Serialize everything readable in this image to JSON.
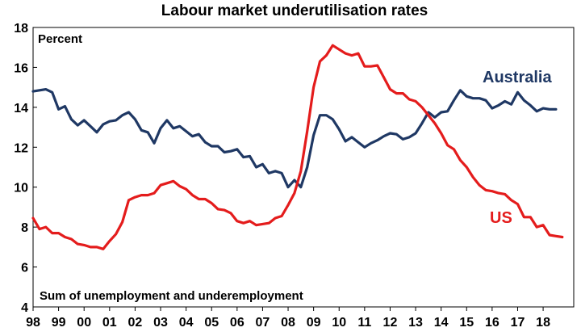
{
  "chart_data": {
    "type": "line",
    "title": "Labour market underutilisation rates",
    "ylabel": "Percent",
    "annotation": "Sum of unemployment and underemployment",
    "ylim": [
      4,
      18
    ],
    "yticks": [
      4,
      6,
      8,
      10,
      12,
      14,
      16,
      18
    ],
    "xlim": [
      1998.0,
      2019.2
    ],
    "xtick_positions": [
      1998,
      1999,
      2000,
      2001,
      2002,
      2003,
      2004,
      2005,
      2006,
      2007,
      2008,
      2009,
      2010,
      2011,
      2012,
      2013,
      2014,
      2015,
      2016,
      2017,
      2018
    ],
    "xtick_labels": [
      "98",
      "99",
      "00",
      "01",
      "02",
      "03",
      "04",
      "05",
      "06",
      "07",
      "08",
      "09",
      "10",
      "11",
      "12",
      "13",
      "14",
      "15",
      "16",
      "17",
      "18"
    ],
    "grid": false,
    "series": [
      {
        "name": "Australia",
        "color": "#1f3864",
        "x": [
          1998.0,
          1998.25,
          1998.5,
          1998.75,
          1999.0,
          1999.25,
          1999.5,
          1999.75,
          2000.0,
          2000.25,
          2000.5,
          2000.75,
          2001.0,
          2001.25,
          2001.5,
          2001.75,
          2002.0,
          2002.25,
          2002.5,
          2002.75,
          2003.0,
          2003.25,
          2003.5,
          2003.75,
          2004.0,
          2004.25,
          2004.5,
          2004.75,
          2005.0,
          2005.25,
          2005.5,
          2005.75,
          2006.0,
          2006.25,
          2006.5,
          2006.75,
          2007.0,
          2007.25,
          2007.5,
          2007.75,
          2008.0,
          2008.25,
          2008.5,
          2008.75,
          2009.0,
          2009.25,
          2009.5,
          2009.75,
          2010.0,
          2010.25,
          2010.5,
          2010.75,
          2011.0,
          2011.25,
          2011.5,
          2011.75,
          2012.0,
          2012.25,
          2012.5,
          2012.75,
          2013.0,
          2013.25,
          2013.5,
          2013.75,
          2014.0,
          2014.25,
          2014.5,
          2014.75,
          2015.0,
          2015.25,
          2015.5,
          2015.75,
          2016.0,
          2016.25,
          2016.5,
          2016.75,
          2017.0,
          2017.25,
          2017.5,
          2017.75,
          2018.0,
          2018.25,
          2018.5
        ],
        "values": [
          14.8,
          14.85,
          14.9,
          14.75,
          13.9,
          14.05,
          13.4,
          13.1,
          13.35,
          13.05,
          12.75,
          13.15,
          13.3,
          13.35,
          13.6,
          13.75,
          13.4,
          12.85,
          12.75,
          12.2,
          12.95,
          13.35,
          12.95,
          13.05,
          12.8,
          12.55,
          12.65,
          12.25,
          12.05,
          12.05,
          11.75,
          11.8,
          11.9,
          11.5,
          11.55,
          11.0,
          11.15,
          10.7,
          10.8,
          10.7,
          10.0,
          10.35,
          10.0,
          11.0,
          12.6,
          13.6,
          13.6,
          13.4,
          12.9,
          12.3,
          12.5,
          12.25,
          12.0,
          12.2,
          12.35,
          12.55,
          12.7,
          12.65,
          12.4,
          12.5,
          12.7,
          13.2,
          13.75,
          13.5,
          13.75,
          13.8,
          14.35,
          14.85,
          14.55,
          14.45,
          14.45,
          14.35,
          13.95,
          14.1,
          14.3,
          14.15,
          14.75,
          14.35,
          14.1,
          13.8,
          13.95,
          13.9,
          13.9
        ]
      },
      {
        "name": "US",
        "color": "#e41c1c",
        "x": [
          1998.0,
          1998.25,
          1998.5,
          1998.75,
          1999.0,
          1999.25,
          1999.5,
          1999.75,
          2000.0,
          2000.25,
          2000.5,
          2000.75,
          2001.0,
          2001.25,
          2001.5,
          2001.75,
          2002.0,
          2002.25,
          2002.5,
          2002.75,
          2003.0,
          2003.25,
          2003.5,
          2003.75,
          2004.0,
          2004.25,
          2004.5,
          2004.75,
          2005.0,
          2005.25,
          2005.5,
          2005.75,
          2006.0,
          2006.25,
          2006.5,
          2006.75,
          2007.0,
          2007.25,
          2007.5,
          2007.75,
          2008.0,
          2008.25,
          2008.5,
          2008.75,
          2009.0,
          2009.25,
          2009.5,
          2009.75,
          2010.0,
          2010.25,
          2010.5,
          2010.75,
          2011.0,
          2011.25,
          2011.5,
          2011.75,
          2012.0,
          2012.25,
          2012.5,
          2012.75,
          2013.0,
          2013.25,
          2013.5,
          2013.75,
          2014.0,
          2014.25,
          2014.5,
          2014.75,
          2015.0,
          2015.25,
          2015.5,
          2015.75,
          2016.0,
          2016.25,
          2016.5,
          2016.75,
          2017.0,
          2017.25,
          2017.5,
          2017.75,
          2018.0,
          2018.25,
          2018.5,
          2018.75
        ],
        "values": [
          8.45,
          7.9,
          8.0,
          7.7,
          7.7,
          7.5,
          7.4,
          7.15,
          7.1,
          7.0,
          7.0,
          6.9,
          7.3,
          7.65,
          8.25,
          9.35,
          9.5,
          9.6,
          9.6,
          9.7,
          10.1,
          10.2,
          10.3,
          10.05,
          9.9,
          9.6,
          9.4,
          9.4,
          9.2,
          8.9,
          8.85,
          8.7,
          8.3,
          8.2,
          8.3,
          8.1,
          8.15,
          8.2,
          8.45,
          8.55,
          9.1,
          9.7,
          10.8,
          12.8,
          15.0,
          16.3,
          16.6,
          17.1,
          16.9,
          16.7,
          16.6,
          16.7,
          16.05,
          16.05,
          16.1,
          15.5,
          14.9,
          14.7,
          14.7,
          14.4,
          14.3,
          14.0,
          13.6,
          13.2,
          12.7,
          12.1,
          11.9,
          11.35,
          11.0,
          10.5,
          10.1,
          9.85,
          9.8,
          9.7,
          9.65,
          9.35,
          9.15,
          8.5,
          8.5,
          8.0,
          8.1,
          7.6,
          7.55,
          7.5
        ]
      }
    ]
  }
}
